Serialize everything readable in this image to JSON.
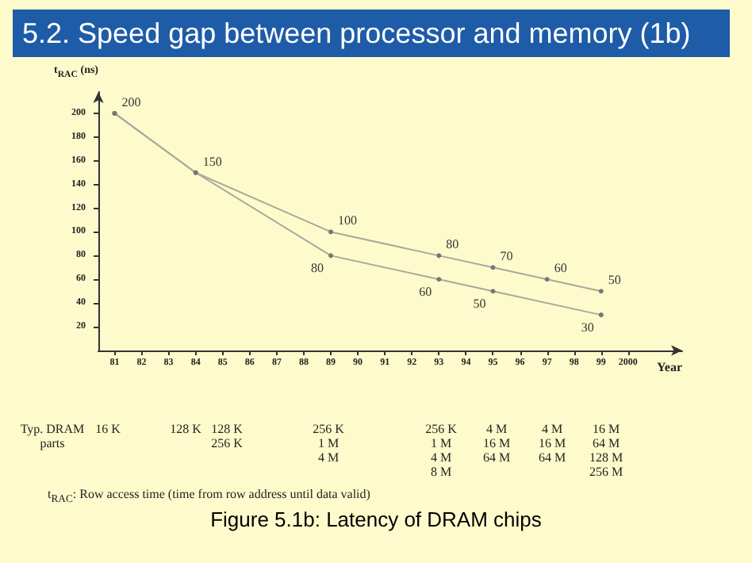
{
  "chart_data": {
    "type": "line",
    "title": "5.2. Speed gap between processor and memory (1b)",
    "xlabel": "Year",
    "ylabel": "t$_{RAC}$ (ns)",
    "series": [
      {
        "color": "#a9a99c",
        "x": [
          1981,
          1984,
          1989,
          1993,
          1995,
          1997,
          1999
        ],
        "values": [
          200,
          150,
          100,
          80,
          70,
          60,
          50
        ],
        "value_labels": [
          "200",
          "150",
          "100",
          "80",
          "70",
          "60",
          "50"
        ]
      },
      {
        "color": "#a9a99c",
        "x": [
          1981,
          1984,
          1989,
          1993,
          1995,
          1999
        ],
        "values": [
          200,
          150,
          80,
          60,
          50,
          30
        ],
        "value_labels": [
          null,
          null,
          "80",
          "60",
          "50",
          "30"
        ]
      }
    ],
    "xlim": [
      1980.4,
      2002
    ],
    "xticks": [
      {
        "value": 1981,
        "label": "81"
      },
      {
        "value": 1982,
        "label": "82"
      },
      {
        "value": 1983,
        "label": "83"
      },
      {
        "value": 1984,
        "label": "84"
      },
      {
        "value": 1985,
        "label": "85"
      },
      {
        "value": 1986,
        "label": "86"
      },
      {
        "value": 1987,
        "label": "87"
      },
      {
        "value": 1988,
        "label": "88"
      },
      {
        "value": 1989,
        "label": "89"
      },
      {
        "value": 1990,
        "label": "90"
      },
      {
        "value": 1991,
        "label": "91"
      },
      {
        "value": 1992,
        "label": "92"
      },
      {
        "value": 1993,
        "label": "93"
      },
      {
        "value": 1994,
        "label": "94"
      },
      {
        "value": 1995,
        "label": "95"
      },
      {
        "value": 1996,
        "label": "96"
      },
      {
        "value": 1997,
        "label": "97"
      },
      {
        "value": 1998,
        "label": "98"
      },
      {
        "value": 1999,
        "label": "99"
      },
      {
        "value": 2000,
        "label": "2000"
      }
    ],
    "ylim": [
      0,
      218
    ],
    "yticks": [
      20,
      40,
      60,
      80,
      100,
      120,
      140,
      160,
      180,
      200
    ],
    "grid": false,
    "marker": "circle",
    "line_style": "solid",
    "annotations": [
      "Typ. DRAM parts",
      "16 K",
      "128 K",
      "128 K\n256 K",
      "256 K\n1 M\n4 M",
      "256 K\n1 M\n4 M\n8 M",
      "4 M\n16 M\n64 M",
      "4 M\n16 M\n64 M",
      "16 M\n64 M\n128 M\n256 M",
      "t$_{RAC}$:  Row access time (time from row address until data valid)",
      "Figure 5.1b: Latency of DRAM chips"
    ]
  }
}
